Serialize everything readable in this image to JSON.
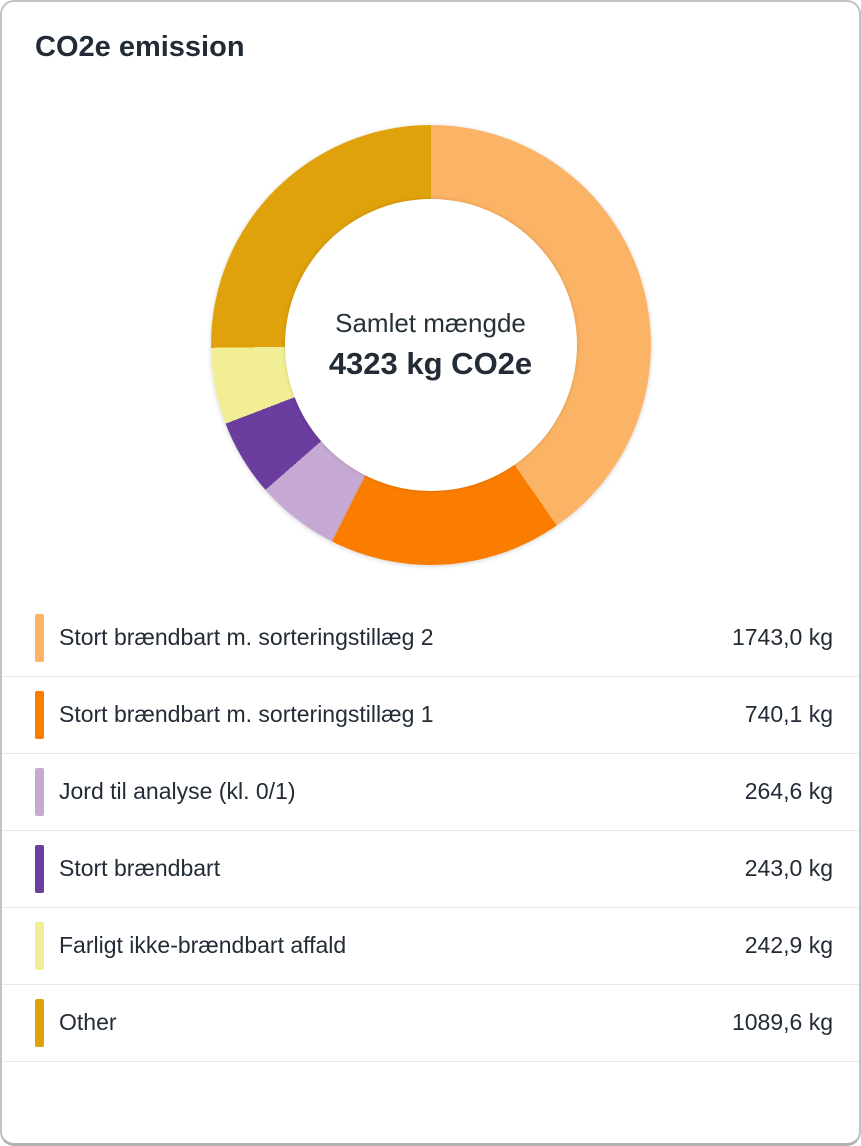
{
  "card": {
    "title": "CO2e emission"
  },
  "chart_data": {
    "type": "pie",
    "variant": "donut",
    "title": "CO2e emission",
    "start_angle_deg": 0,
    "direction": "clockwise",
    "inner_radius_ratio": 0.66,
    "center_text": {
      "label": "Samlet mængde",
      "value": "4323 kg CO2e"
    },
    "total_kg": 4323.2,
    "unit": "kg",
    "segments": [
      {
        "label": "Stort brændbart m. sorteringstillæg 2",
        "value_kg": 1743.0,
        "display_value": "1743,0 kg",
        "color": "#FBB365"
      },
      {
        "label": "Stort brændbart m. sorteringstillæg 1",
        "value_kg": 740.1,
        "display_value": "740,1 kg",
        "color": "#FA7D00"
      },
      {
        "label": "Jord til analyse (kl. 0/1)",
        "value_kg": 264.6,
        "display_value": "264,6 kg",
        "color": "#C5A9D3"
      },
      {
        "label": "Stort brændbart",
        "value_kg": 243.0,
        "display_value": "243,0 kg",
        "color": "#6A3D9E"
      },
      {
        "label": "Farligt ikke-brændbart affald",
        "value_kg": 242.9,
        "display_value": "242,9 kg",
        "color": "#F2EE95"
      },
      {
        "label": "Other",
        "value_kg": 1089.6,
        "display_value": "1089,6 kg",
        "color": "#E0A20B"
      }
    ]
  }
}
